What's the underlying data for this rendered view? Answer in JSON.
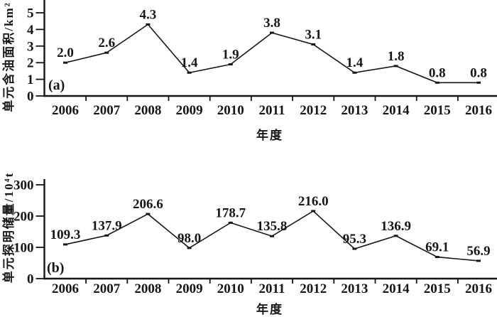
{
  "figure": {
    "background": "#ffffff",
    "ink": "#161616"
  },
  "chart_data": [
    {
      "id": "a",
      "type": "line",
      "panel_label": "(a)",
      "xlabel": "年度",
      "ylabel": "单元含油面积/km²",
      "categories": [
        "2006",
        "2007",
        "2008",
        "2009",
        "2010",
        "2011",
        "2012",
        "2013",
        "2014",
        "2015",
        "2016"
      ],
      "values": [
        2.0,
        2.6,
        4.3,
        1.4,
        1.9,
        3.8,
        3.1,
        1.4,
        1.8,
        0.8,
        0.8
      ],
      "value_labels": [
        "2.0",
        "2.6",
        "4.3",
        "1.4",
        "1.9",
        "3.8",
        "3.1",
        "1.4",
        "1.8",
        "0.8",
        "0.8"
      ],
      "yticks": [
        0,
        1,
        2,
        3,
        4,
        5
      ],
      "ytick_labels": [
        "0",
        "1",
        "2",
        "3",
        "4",
        "5"
      ],
      "ylim": [
        0,
        5.8
      ],
      "grid": false,
      "legend": "none",
      "line_color": "#161616"
    },
    {
      "id": "b",
      "type": "line",
      "panel_label": "(b)",
      "xlabel": "年度",
      "ylabel": "单元探明储量/10⁴t",
      "categories": [
        "2006",
        "2007",
        "2008",
        "2009",
        "2010",
        "2011",
        "2012",
        "2013",
        "2014",
        "2015",
        "2016"
      ],
      "values": [
        109.3,
        137.9,
        206.6,
        98.0,
        178.7,
        135.8,
        216.0,
        95.3,
        136.9,
        69.1,
        56.9
      ],
      "value_labels": [
        "109.3",
        "137.9",
        "206.6",
        "98.0",
        "178.7",
        "135.8",
        "216.0",
        "95.3",
        "136.9",
        "69.1",
        "56.9"
      ],
      "yticks": [
        0,
        100,
        200,
        300
      ],
      "ytick_labels": [
        "0",
        "100",
        "200",
        "300"
      ],
      "ylim": [
        0,
        318
      ],
      "grid": false,
      "legend": "none",
      "line_color": "#161616"
    }
  ]
}
